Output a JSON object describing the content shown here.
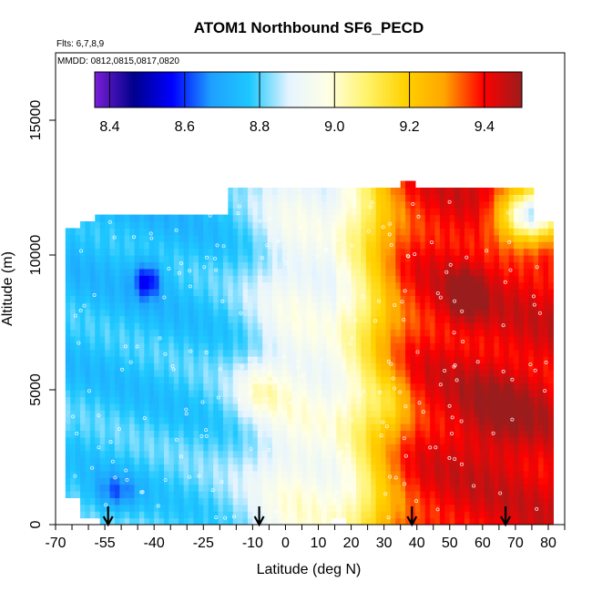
{
  "chart_data": {
    "type": "heatmap",
    "title": "ATOM1 Northbound SF6_PECD",
    "flights_label": "Flts: 6,7,8,9",
    "dates_label": "MMDD: 0812,0815,0817,0820",
    "xlabel": "Latitude (deg N)",
    "ylabel": "Altitude (m)",
    "xlim": [
      -70,
      85
    ],
    "ylim": [
      0,
      17500
    ],
    "x_ticks": [
      -70,
      -55,
      -40,
      -25,
      -10,
      0,
      10,
      20,
      30,
      40,
      50,
      60,
      70,
      80
    ],
    "x_tick_labels": [
      "-70",
      "-55",
      "-40",
      "-25",
      "-10",
      "0",
      "10",
      "20",
      "30",
      "40",
      "50",
      "60",
      "70",
      "80"
    ],
    "y_ticks": [
      0,
      5000,
      10000,
      15000
    ],
    "y_tick_labels": [
      "0",
      "5000",
      "10000",
      "15000"
    ],
    "colorbar": {
      "range": [
        8.36,
        9.5
      ],
      "ticks": [
        8.4,
        8.6,
        8.8,
        9.0,
        9.2,
        9.4
      ],
      "tick_labels": [
        "8.4",
        "8.6",
        "8.8",
        "9.0",
        "9.2",
        "9.4"
      ],
      "colors": [
        "#7a1fd6",
        "#00008b",
        "#0000ff",
        "#1ea0ff",
        "#1ec8ff",
        "#e6f4ff",
        "#ffffe6",
        "#fff36b",
        "#ffd200",
        "#ffa500",
        "#ff0000",
        "#9b1c1c"
      ]
    },
    "flight_markers_lat": [
      -54,
      -8,
      38.5,
      67
    ],
    "grid": false
  }
}
